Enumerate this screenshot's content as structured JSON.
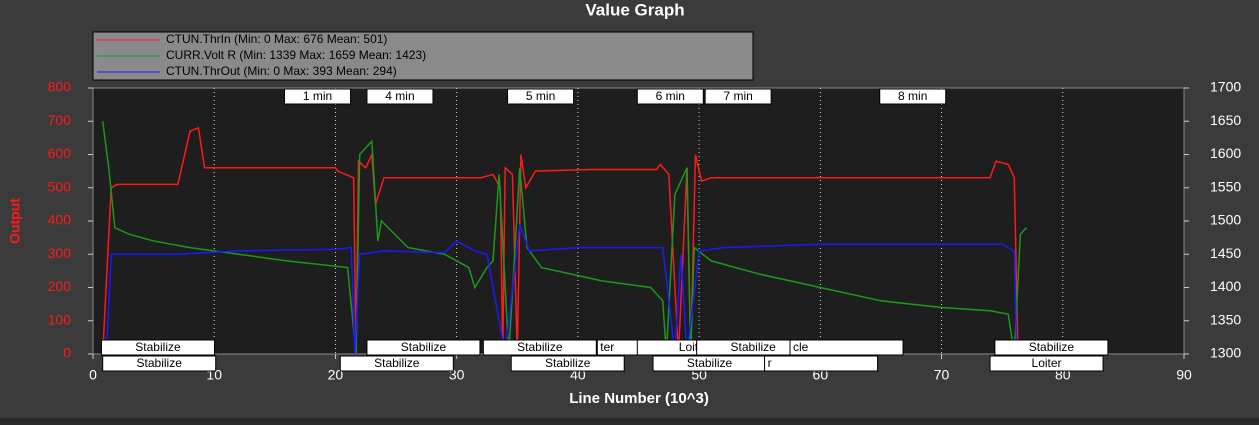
{
  "chart_data": {
    "type": "line",
    "title": "Value Graph",
    "xlabel": "Line Number (10^3)",
    "ylabel": "Output",
    "xlim": [
      0,
      90
    ],
    "xticks": [
      0,
      10,
      20,
      30,
      40,
      50,
      60,
      70,
      80,
      90
    ],
    "ylim": [
      0,
      800
    ],
    "yticks": [
      0,
      100,
      200,
      300,
      400,
      500,
      600,
      700,
      800
    ],
    "y2lim": [
      1300,
      1700
    ],
    "y2ticks": [
      1300,
      1350,
      1400,
      1450,
      1500,
      1550,
      1600,
      1650,
      1700
    ],
    "grid": "x",
    "legend": "top-left",
    "series": [
      {
        "name": "CTUN.ThrIn (Min: 0 Max: 676 Mean: 501)",
        "color": "#ff1a1a",
        "x": [
          0.8,
          1.5,
          2.0,
          4.0,
          7.0,
          8.0,
          8.7,
          9.2,
          14.0,
          20.0,
          20.2,
          21.5,
          21.7,
          21.9,
          22.5,
          23.0,
          23.3,
          24.0,
          28.0,
          32.0,
          33.0,
          33.6,
          33.8,
          34.0,
          34.6,
          35.0,
          35.3,
          35.7,
          36.5,
          41.0,
          46.5,
          46.8,
          47.5,
          48.3,
          49.0,
          49.3,
          49.7,
          50.2,
          51.0,
          60.0,
          74.0,
          74.5,
          75.5,
          76.0,
          76.3
        ],
        "values": [
          0,
          500,
          510,
          510,
          510,
          670,
          680,
          560,
          560,
          560,
          550,
          530,
          0,
          580,
          560,
          600,
          450,
          530,
          530,
          530,
          540,
          500,
          0,
          560,
          540,
          0,
          600,
          500,
          550,
          555,
          555,
          570,
          540,
          0,
          560,
          0,
          600,
          520,
          530,
          530,
          530,
          580,
          570,
          530,
          0
        ]
      },
      {
        "name": "CURR.Volt R (Min: 1339 Max: 1659 Mean: 1423)",
        "color": "#1a9a1a",
        "axis": "y2",
        "x": [
          0.8,
          1.3,
          1.8,
          3.0,
          5.0,
          8.0,
          12.0,
          16.0,
          21.0,
          21.7,
          22.0,
          23.0,
          23.5,
          23.8,
          26.0,
          29.0,
          31.0,
          31.5,
          32.5,
          33.0,
          33.5,
          34.3,
          35.2,
          35.8,
          37.0,
          42.0,
          46.0,
          47.0,
          47.3,
          48.0,
          49.0,
          49.3,
          49.6,
          51.0,
          55.0,
          60.0,
          65.0,
          70.0,
          74.0,
          75.5,
          76.0,
          76.5,
          77.0
        ],
        "values": [
          1650,
          1580,
          1490,
          1480,
          1470,
          1460,
          1450,
          1440,
          1430,
          1300,
          1600,
          1620,
          1470,
          1500,
          1460,
          1450,
          1430,
          1400,
          1430,
          1440,
          1570,
          1300,
          1580,
          1460,
          1430,
          1410,
          1400,
          1380,
          1300,
          1540,
          1580,
          1300,
          1460,
          1440,
          1420,
          1400,
          1380,
          1370,
          1365,
          1360,
          1300,
          1480,
          1490
        ]
      },
      {
        "name": "CTUN.ThrOut (Min: 0 Max: 393 Mean: 294)",
        "color": "#1a1aff",
        "x": [
          1.1,
          1.5,
          7.0,
          12.0,
          20.0,
          21.3,
          21.6,
          22.0,
          24.0,
          29.0,
          30.0,
          31.5,
          32.5,
          34.0,
          35.2,
          36.0,
          40.0,
          47.0,
          48.0,
          48.5,
          49.0,
          50.0,
          52.0,
          60.0,
          70.0,
          75.0,
          76.0,
          76.2
        ],
        "values": [
          0,
          300,
          300,
          310,
          315,
          320,
          0,
          300,
          310,
          305,
          340,
          310,
          300,
          0,
          390,
          310,
          320,
          320,
          0,
          300,
          0,
          310,
          320,
          330,
          330,
          330,
          310,
          0
        ]
      }
    ],
    "time_markers": [
      {
        "label": "1 min",
        "x": 15.8
      },
      {
        "label": "4 min",
        "x": 22.6
      },
      {
        "label": "5 min",
        "x": 34.2
      },
      {
        "label": "6 min",
        "x": 44.9
      },
      {
        "label": "7 min",
        "x": 50.5
      },
      {
        "label": "8 min",
        "x": 64.9
      }
    ],
    "modes_row1": [
      {
        "label": "Stabilize",
        "x": 0.7
      },
      {
        "label": "Stabilize",
        "x": 22.6
      },
      {
        "label": "Stabilize",
        "x": 32.2
      },
      {
        "label": "ter",
        "x": 41.6
      },
      {
        "label": "Loiter",
        "x": 44.9
      },
      {
        "label": "Stabilize",
        "x": 49.8
      },
      {
        "label": "cle",
        "x": 57.5
      },
      {
        "label": "Stabilize",
        "x": 74.4
      }
    ],
    "modes_row2": [
      {
        "label": "Stabilize",
        "x": 0.8
      },
      {
        "label": "Stabilize",
        "x": 20.4
      },
      {
        "label": "Stabilize",
        "x": 34.5
      },
      {
        "label": "Stabilize",
        "x": 46.2
      },
      {
        "label": "r",
        "x": 55.4
      },
      {
        "label": "Loiter",
        "x": 74.0
      }
    ]
  }
}
